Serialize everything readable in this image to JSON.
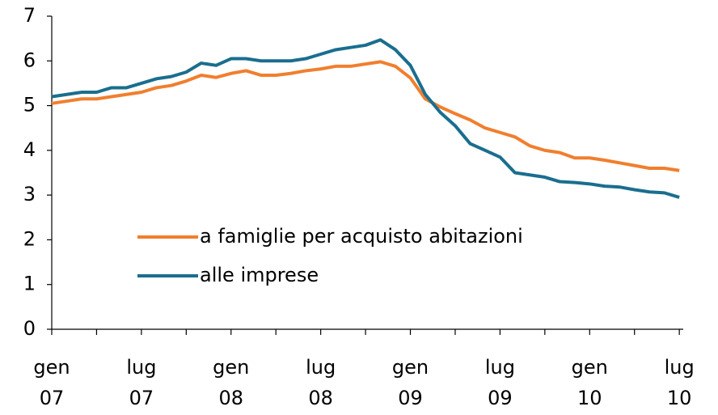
{
  "chart_data": {
    "type": "line",
    "categories": [
      "gen 07",
      null,
      null,
      null,
      null,
      null,
      "lug 07",
      null,
      null,
      null,
      null,
      null,
      "gen 08",
      null,
      null,
      null,
      null,
      null,
      "lug 08",
      null,
      null,
      null,
      null,
      null,
      "gen 09",
      null,
      null,
      null,
      null,
      null,
      "lug 09",
      null,
      null,
      null,
      null,
      null,
      "gen 10",
      null,
      null,
      null,
      null,
      null,
      "lug 10"
    ],
    "series": [
      {
        "name": "a famiglie per acquisto abitazioni",
        "color": "#f07f2e",
        "values": [
          5.05,
          5.1,
          5.15,
          5.15,
          5.2,
          5.25,
          5.3,
          5.4,
          5.45,
          5.55,
          5.68,
          5.63,
          5.72,
          5.78,
          5.68,
          5.68,
          5.72,
          5.78,
          5.82,
          5.88,
          5.88,
          5.93,
          5.98,
          5.88,
          5.62,
          5.15,
          4.97,
          4.82,
          4.68,
          4.5,
          4.4,
          4.3,
          4.1,
          4.0,
          3.95,
          3.83,
          3.83,
          3.78,
          3.72,
          3.66,
          3.6,
          3.6,
          3.55
        ]
      },
      {
        "name": "alle imprese",
        "color": "#1a6e8e",
        "values": [
          5.2,
          5.25,
          5.3,
          5.3,
          5.4,
          5.4,
          5.5,
          5.6,
          5.65,
          5.75,
          5.95,
          5.9,
          6.05,
          6.05,
          6.0,
          6.0,
          6.0,
          6.05,
          6.15,
          6.25,
          6.3,
          6.35,
          6.47,
          6.25,
          5.9,
          5.25,
          4.85,
          4.55,
          4.15,
          4.0,
          3.85,
          3.5,
          3.45,
          3.4,
          3.3,
          3.28,
          3.25,
          3.2,
          3.18,
          3.12,
          3.07,
          3.05,
          2.95
        ]
      }
    ],
    "ylim": [
      0,
      7
    ],
    "yticks": [
      0,
      1,
      2,
      3,
      4,
      5,
      6,
      7
    ],
    "grid": false
  }
}
